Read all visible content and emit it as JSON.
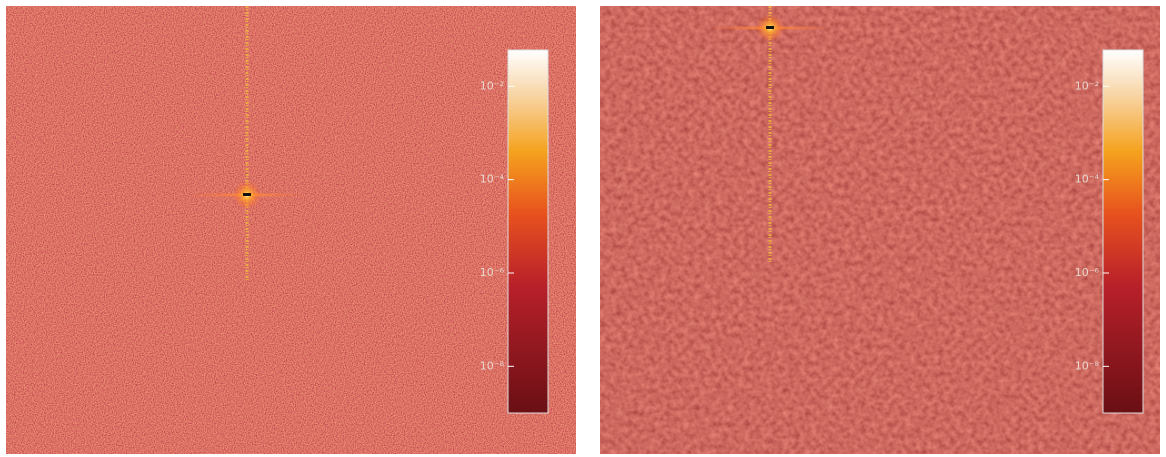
{
  "chart_data": [
    {
      "type": "heatmap",
      "log_scale": true,
      "clim": [
        1e-09,
        0.06
      ],
      "cticks": [
        {
          "value": 0.01,
          "label": "10⁻²"
        },
        {
          "value": 0.0001,
          "label": "10⁻⁴"
        },
        {
          "value": 1e-06,
          "label": "10⁻⁶"
        },
        {
          "value": 1e-08,
          "label": "10⁻⁸"
        }
      ]
    },
    {
      "type": "heatmap",
      "log_scale": true,
      "clim": [
        1e-09,
        0.06
      ],
      "cticks": [
        {
          "value": 0.01,
          "label": "10⁻²"
        },
        {
          "value": 0.0001,
          "label": "10⁻⁴"
        },
        {
          "value": 1e-06,
          "label": "10⁻⁶"
        },
        {
          "value": 1e-08,
          "label": "10⁻⁸"
        }
      ]
    }
  ]
}
